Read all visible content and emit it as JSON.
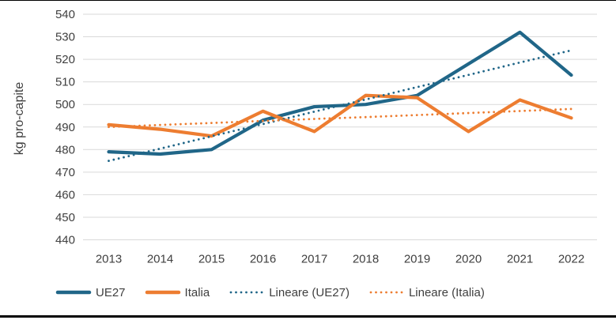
{
  "chart_data": {
    "type": "line",
    "title": "",
    "ylabel": "kg pro-capite",
    "xlabel": "",
    "ylim": [
      440,
      540
    ],
    "ytick_step": 10,
    "grid": "horizontal",
    "gridline_color": "#d9d9d9",
    "legend_position": "bottom",
    "categories": [
      "2013",
      "2014",
      "2015",
      "2016",
      "2017",
      "2018",
      "2019",
      "2020",
      "2021",
      "2022"
    ],
    "series": [
      {
        "name": "UE27",
        "style": "solid",
        "color": "#206688",
        "values": [
          479,
          478,
          480,
          493,
          499,
          500,
          504,
          518,
          532,
          513
        ]
      },
      {
        "name": "Italia",
        "style": "solid",
        "color": "#ED7D31",
        "values": [
          491,
          489,
          486,
          497,
          488,
          504,
          503,
          488,
          502,
          494
        ]
      },
      {
        "name": "Lineare (UE27)",
        "style": "dotted",
        "color": "#206688",
        "values": [
          475,
          480.4,
          485.9,
          491.3,
          496.8,
          502.2,
          507.7,
          513.1,
          518.6,
          524
        ]
      },
      {
        "name": "Lineare (Italia)",
        "style": "dotted",
        "color": "#ED7D31",
        "values": [
          490,
          490.9,
          491.8,
          492.7,
          493.6,
          494.4,
          495.3,
          496.2,
          497.1,
          498
        ]
      }
    ]
  }
}
